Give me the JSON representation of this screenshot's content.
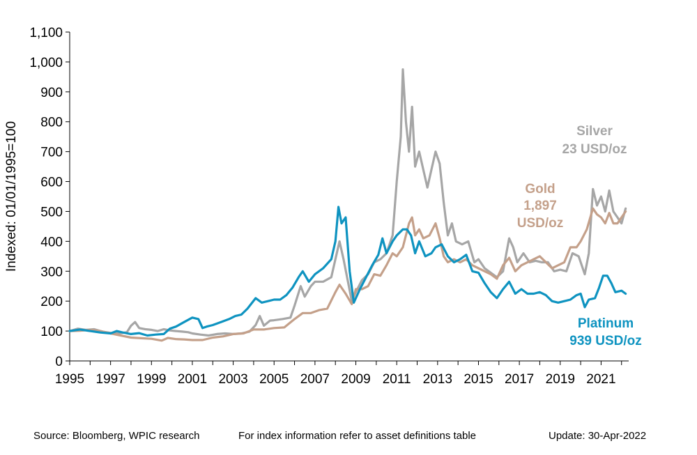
{
  "chart_data": {
    "type": "line",
    "ylabel": "Indexed: 01/01/1995=100",
    "ylim": [
      0,
      1100
    ],
    "yticks": [
      0,
      100,
      200,
      300,
      400,
      500,
      600,
      700,
      800,
      900,
      1000,
      1100
    ],
    "ytick_labels": [
      "0",
      "100",
      "200",
      "300",
      "400",
      "500",
      "600",
      "700",
      "800",
      "900",
      "1,000",
      "1,100"
    ],
    "xlim": [
      1995,
      2022.35
    ],
    "xticks": [
      1995,
      1997,
      1999,
      2001,
      2003,
      2005,
      2007,
      2009,
      2011,
      2013,
      2015,
      2017,
      2019,
      2021
    ],
    "xtick_labels": [
      "1995",
      "1997",
      "1999",
      "2001",
      "2003",
      "2005",
      "2007",
      "2009",
      "2011",
      "2013",
      "2015",
      "2017",
      "2019",
      "2021"
    ],
    "grid": false,
    "legend": "inline labels at line ends",
    "series": [
      {
        "name": "Silver",
        "label_lines": [
          "Silver",
          "23 USD/oz"
        ],
        "color": "#a6a6a6",
        "points": [
          [
            1995.0,
            100
          ],
          [
            1995.4,
            108
          ],
          [
            1995.8,
            104
          ],
          [
            1996.2,
            106
          ],
          [
            1996.6,
            98
          ],
          [
            1997.0,
            94
          ],
          [
            1997.4,
            92
          ],
          [
            1997.8,
            96
          ],
          [
            1998.0,
            118
          ],
          [
            1998.2,
            130
          ],
          [
            1998.4,
            110
          ],
          [
            1998.7,
            106
          ],
          [
            1999.0,
            104
          ],
          [
            1999.3,
            100
          ],
          [
            1999.6,
            106
          ],
          [
            1999.9,
            102
          ],
          [
            2000.2,
            100
          ],
          [
            2000.5,
            98
          ],
          [
            2000.8,
            96
          ],
          [
            2001.0,
            92
          ],
          [
            2001.4,
            88
          ],
          [
            2001.8,
            85
          ],
          [
            2002.2,
            90
          ],
          [
            2002.6,
            92
          ],
          [
            2003.0,
            90
          ],
          [
            2003.4,
            92
          ],
          [
            2003.8,
            98
          ],
          [
            2004.1,
            120
          ],
          [
            2004.3,
            150
          ],
          [
            2004.5,
            118
          ],
          [
            2004.8,
            135
          ],
          [
            2005.0,
            136
          ],
          [
            2005.4,
            140
          ],
          [
            2005.8,
            145
          ],
          [
            2006.0,
            185
          ],
          [
            2006.3,
            250
          ],
          [
            2006.5,
            215
          ],
          [
            2006.8,
            250
          ],
          [
            2007.0,
            265
          ],
          [
            2007.4,
            265
          ],
          [
            2007.8,
            280
          ],
          [
            2008.0,
            340
          ],
          [
            2008.2,
            400
          ],
          [
            2008.4,
            340
          ],
          [
            2008.6,
            270
          ],
          [
            2008.8,
            200
          ],
          [
            2009.0,
            230
          ],
          [
            2009.3,
            270
          ],
          [
            2009.6,
            290
          ],
          [
            2009.9,
            330
          ],
          [
            2010.2,
            340
          ],
          [
            2010.5,
            360
          ],
          [
            2010.8,
            420
          ],
          [
            2011.0,
            600
          ],
          [
            2011.2,
            750
          ],
          [
            2011.3,
            975
          ],
          [
            2011.45,
            800
          ],
          [
            2011.6,
            700
          ],
          [
            2011.75,
            850
          ],
          [
            2011.9,
            650
          ],
          [
            2012.1,
            700
          ],
          [
            2012.3,
            640
          ],
          [
            2012.5,
            580
          ],
          [
            2012.7,
            640
          ],
          [
            2012.9,
            700
          ],
          [
            2013.1,
            660
          ],
          [
            2013.3,
            530
          ],
          [
            2013.5,
            420
          ],
          [
            2013.7,
            460
          ],
          [
            2013.9,
            400
          ],
          [
            2014.2,
            390
          ],
          [
            2014.5,
            400
          ],
          [
            2014.8,
            330
          ],
          [
            2015.0,
            340
          ],
          [
            2015.3,
            310
          ],
          [
            2015.6,
            295
          ],
          [
            2015.9,
            280
          ],
          [
            2016.2,
            300
          ],
          [
            2016.5,
            410
          ],
          [
            2016.7,
            380
          ],
          [
            2016.9,
            330
          ],
          [
            2017.2,
            360
          ],
          [
            2017.5,
            330
          ],
          [
            2017.8,
            335
          ],
          [
            2018.1,
            330
          ],
          [
            2018.4,
            330
          ],
          [
            2018.7,
            300
          ],
          [
            2019.0,
            305
          ],
          [
            2019.3,
            300
          ],
          [
            2019.6,
            360
          ],
          [
            2019.9,
            350
          ],
          [
            2020.2,
            290
          ],
          [
            2020.4,
            360
          ],
          [
            2020.6,
            575
          ],
          [
            2020.8,
            520
          ],
          [
            2021.0,
            550
          ],
          [
            2021.2,
            500
          ],
          [
            2021.4,
            570
          ],
          [
            2021.6,
            500
          ],
          [
            2021.8,
            480
          ],
          [
            2022.0,
            460
          ],
          [
            2022.2,
            510
          ]
        ]
      },
      {
        "name": "Gold",
        "label_lines": [
          "Gold",
          "1,897",
          "USD/oz"
        ],
        "color": "#c4a08a",
        "points": [
          [
            1995.0,
            100
          ],
          [
            1995.5,
            101
          ],
          [
            1996.0,
            104
          ],
          [
            1996.5,
            100
          ],
          [
            1997.0,
            92
          ],
          [
            1997.5,
            85
          ],
          [
            1998.0,
            78
          ],
          [
            1998.5,
            76
          ],
          [
            1999.0,
            74
          ],
          [
            1999.5,
            68
          ],
          [
            1999.8,
            77
          ],
          [
            2000.2,
            73
          ],
          [
            2000.6,
            72
          ],
          [
            2001.0,
            70
          ],
          [
            2001.5,
            70
          ],
          [
            2002.0,
            78
          ],
          [
            2002.5,
            82
          ],
          [
            2003.0,
            90
          ],
          [
            2003.5,
            92
          ],
          [
            2004.0,
            105
          ],
          [
            2004.5,
            105
          ],
          [
            2005.0,
            110
          ],
          [
            2005.5,
            112
          ],
          [
            2006.0,
            140
          ],
          [
            2006.4,
            160
          ],
          [
            2006.8,
            160
          ],
          [
            2007.2,
            170
          ],
          [
            2007.6,
            175
          ],
          [
            2008.0,
            230
          ],
          [
            2008.2,
            255
          ],
          [
            2008.5,
            225
          ],
          [
            2008.8,
            190
          ],
          [
            2009.0,
            240
          ],
          [
            2009.3,
            240
          ],
          [
            2009.6,
            250
          ],
          [
            2009.9,
            290
          ],
          [
            2010.2,
            285
          ],
          [
            2010.5,
            320
          ],
          [
            2010.8,
            360
          ],
          [
            2011.0,
            350
          ],
          [
            2011.3,
            380
          ],
          [
            2011.6,
            460
          ],
          [
            2011.75,
            480
          ],
          [
            2011.9,
            420
          ],
          [
            2012.1,
            440
          ],
          [
            2012.3,
            410
          ],
          [
            2012.6,
            420
          ],
          [
            2012.9,
            460
          ],
          [
            2013.1,
            410
          ],
          [
            2013.3,
            350
          ],
          [
            2013.5,
            330
          ],
          [
            2013.8,
            340
          ],
          [
            2014.1,
            330
          ],
          [
            2014.4,
            340
          ],
          [
            2014.7,
            320
          ],
          [
            2015.0,
            310
          ],
          [
            2015.3,
            300
          ],
          [
            2015.6,
            290
          ],
          [
            2015.9,
            275
          ],
          [
            2016.2,
            320
          ],
          [
            2016.5,
            345
          ],
          [
            2016.8,
            300
          ],
          [
            2017.1,
            320
          ],
          [
            2017.4,
            330
          ],
          [
            2017.7,
            340
          ],
          [
            2018.0,
            350
          ],
          [
            2018.3,
            330
          ],
          [
            2018.6,
            310
          ],
          [
            2018.9,
            320
          ],
          [
            2019.2,
            330
          ],
          [
            2019.5,
            380
          ],
          [
            2019.8,
            380
          ],
          [
            2020.0,
            400
          ],
          [
            2020.3,
            440
          ],
          [
            2020.6,
            510
          ],
          [
            2020.8,
            490
          ],
          [
            2021.0,
            480
          ],
          [
            2021.2,
            460
          ],
          [
            2021.4,
            495
          ],
          [
            2021.6,
            460
          ],
          [
            2021.8,
            460
          ],
          [
            2022.0,
            480
          ],
          [
            2022.2,
            500
          ]
        ]
      },
      {
        "name": "Platinum",
        "label_lines": [
          "Platinum",
          "939 USD/oz"
        ],
        "color": "#0e93c0",
        "points": [
          [
            1995.0,
            100
          ],
          [
            1995.5,
            105
          ],
          [
            1996.0,
            100
          ],
          [
            1996.5,
            95
          ],
          [
            1997.0,
            92
          ],
          [
            1997.3,
            100
          ],
          [
            1997.6,
            95
          ],
          [
            1998.0,
            90
          ],
          [
            1998.4,
            93
          ],
          [
            1998.8,
            85
          ],
          [
            1999.2,
            88
          ],
          [
            1999.6,
            90
          ],
          [
            1999.9,
            108
          ],
          [
            2000.2,
            115
          ],
          [
            2000.6,
            130
          ],
          [
            2001.0,
            145
          ],
          [
            2001.3,
            140
          ],
          [
            2001.5,
            110
          ],
          [
            2001.7,
            115
          ],
          [
            2002.0,
            120
          ],
          [
            2002.4,
            130
          ],
          [
            2002.8,
            140
          ],
          [
            2003.1,
            150
          ],
          [
            2003.4,
            155
          ],
          [
            2003.7,
            175
          ],
          [
            2004.1,
            210
          ],
          [
            2004.4,
            195
          ],
          [
            2004.7,
            200
          ],
          [
            2005.0,
            205
          ],
          [
            2005.3,
            205
          ],
          [
            2005.6,
            220
          ],
          [
            2005.9,
            245
          ],
          [
            2006.2,
            280
          ],
          [
            2006.4,
            300
          ],
          [
            2006.7,
            265
          ],
          [
            2007.0,
            290
          ],
          [
            2007.4,
            310
          ],
          [
            2007.8,
            340
          ],
          [
            2008.0,
            400
          ],
          [
            2008.15,
            515
          ],
          [
            2008.3,
            460
          ],
          [
            2008.5,
            480
          ],
          [
            2008.7,
            300
          ],
          [
            2008.9,
            195
          ],
          [
            2009.2,
            240
          ],
          [
            2009.5,
            280
          ],
          [
            2009.8,
            320
          ],
          [
            2010.1,
            355
          ],
          [
            2010.3,
            410
          ],
          [
            2010.5,
            360
          ],
          [
            2010.8,
            400
          ],
          [
            2011.0,
            420
          ],
          [
            2011.3,
            440
          ],
          [
            2011.5,
            440
          ],
          [
            2011.7,
            420
          ],
          [
            2011.9,
            360
          ],
          [
            2012.1,
            400
          ],
          [
            2012.4,
            350
          ],
          [
            2012.7,
            360
          ],
          [
            2012.9,
            380
          ],
          [
            2013.2,
            390
          ],
          [
            2013.5,
            350
          ],
          [
            2013.8,
            330
          ],
          [
            2014.1,
            340
          ],
          [
            2014.4,
            355
          ],
          [
            2014.7,
            300
          ],
          [
            2015.0,
            295
          ],
          [
            2015.3,
            260
          ],
          [
            2015.6,
            230
          ],
          [
            2015.9,
            210
          ],
          [
            2016.2,
            240
          ],
          [
            2016.5,
            265
          ],
          [
            2016.8,
            225
          ],
          [
            2017.1,
            240
          ],
          [
            2017.4,
            225
          ],
          [
            2017.7,
            225
          ],
          [
            2018.0,
            230
          ],
          [
            2018.3,
            220
          ],
          [
            2018.6,
            200
          ],
          [
            2018.9,
            195
          ],
          [
            2019.2,
            200
          ],
          [
            2019.5,
            205
          ],
          [
            2019.8,
            220
          ],
          [
            2020.0,
            225
          ],
          [
            2020.2,
            180
          ],
          [
            2020.4,
            205
          ],
          [
            2020.7,
            210
          ],
          [
            2020.9,
            245
          ],
          [
            2021.1,
            285
          ],
          [
            2021.3,
            285
          ],
          [
            2021.5,
            260
          ],
          [
            2021.7,
            230
          ],
          [
            2022.0,
            235
          ],
          [
            2022.2,
            225
          ]
        ]
      }
    ]
  },
  "footer": {
    "source": "Source: Bloomberg, WPIC research",
    "note": "For index information refer to asset definitions table",
    "update": "Update: 30-Apr-2022"
  }
}
